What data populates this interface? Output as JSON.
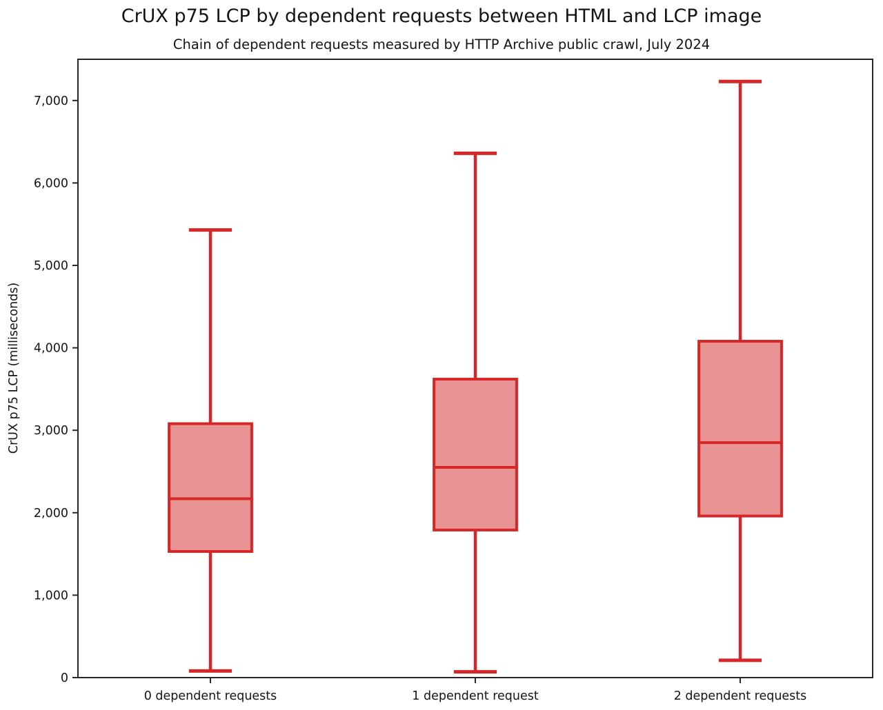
{
  "page": {
    "title": "CrUX p75 LCP by dependent requests between HTML and LCP image",
    "subtitle": "Chain of dependent requests measured by HTTP Archive public crawl, July 2024"
  },
  "chart_data": {
    "type": "boxplot",
    "title": "CrUX p75 LCP by dependent requests between HTML and LCP image",
    "subtitle": "Chain of dependent requests measured by HTTP Archive public crawl, July 2024",
    "xlabel": "",
    "ylabel": "CrUX p75 LCP (milliseconds)",
    "categories": [
      "0 dependent requests",
      "1 dependent request",
      "2 dependent requests"
    ],
    "series": [
      {
        "name": "0 dependent requests",
        "min": 80,
        "q1": 1530,
        "median": 2170,
        "q3": 3080,
        "max": 5430
      },
      {
        "name": "1 dependent request",
        "min": 70,
        "q1": 1790,
        "median": 2550,
        "q3": 3620,
        "max": 6360
      },
      {
        "name": "2 dependent requests",
        "min": 210,
        "q1": 1960,
        "median": 2850,
        "q3": 4080,
        "max": 7230
      }
    ],
    "ylim": [
      0,
      7500
    ],
    "yticks": [
      0,
      1000,
      2000,
      3000,
      4000,
      5000,
      6000,
      7000
    ],
    "ytick_labels": [
      "0",
      "1,000",
      "2,000",
      "3,000",
      "4,000",
      "5,000",
      "6,000",
      "7,000"
    ],
    "units": "milliseconds",
    "grid": false,
    "legend": "none",
    "colors": {
      "box_edge": "#d62728",
      "box_fill": "#ea9394",
      "axis": "#262626",
      "text": "#141414"
    }
  }
}
